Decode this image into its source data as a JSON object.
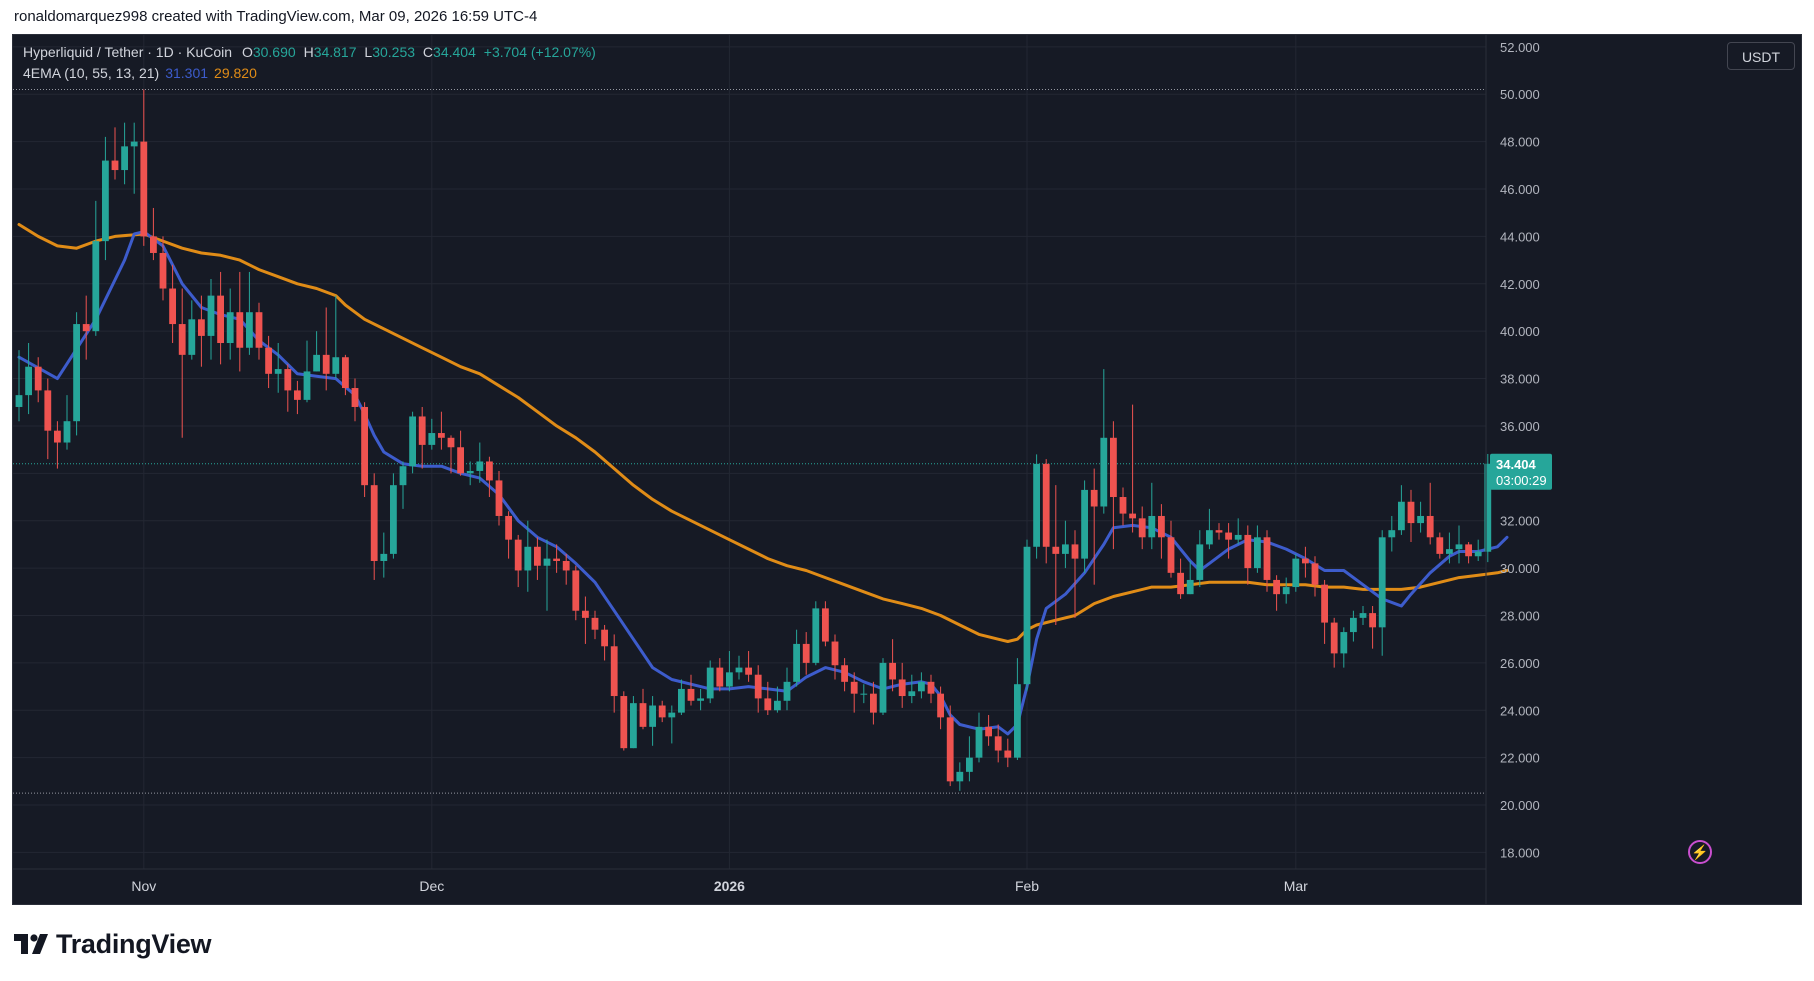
{
  "caption": "ronaldomarquez998 created with TradingView.com, Mar 09, 2026 16:59 UTC-4",
  "legend": {
    "symbol": "Hyperliquid / Tether · 1D · KuCoin",
    "o_label": "O",
    "o": "30.690",
    "h_label": "H",
    "h": "34.817",
    "l_label": "L",
    "l": "30.253",
    "c_label": "C",
    "c": "34.404",
    "change": "+3.704 (+12.07%)",
    "indicator": "4EMA (10, 55, 13, 21)",
    "ema_fast": "31.301",
    "ema_slow": "29.820"
  },
  "currency": "USDT",
  "price_label": {
    "price": "34.404",
    "countdown": "03:00:29"
  },
  "brand": "TradingView",
  "colors": {
    "up": "#26a69a",
    "down": "#ef5350",
    "ema_fast": "#3d5ccc",
    "ema_slow": "#e08c17",
    "background": "#161a25",
    "grid": "#232733",
    "text": "#b2b5be"
  },
  "chart_data": {
    "type": "candlestick",
    "y_ticks": [
      "18.000",
      "20.000",
      "22.000",
      "24.000",
      "26.000",
      "28.000",
      "30.000",
      "32.000",
      "34.000",
      "36.000",
      "38.000",
      "40.000",
      "42.000",
      "44.000",
      "46.000",
      "48.000",
      "50.000",
      "52.000"
    ],
    "x_ticks": [
      {
        "label": "Nov",
        "index": 13
      },
      {
        "label": "Dec",
        "index": 43
      },
      {
        "label": "2026",
        "index": 74
      },
      {
        "label": "Feb",
        "index": 105
      },
      {
        "label": "Mar",
        "index": 133
      }
    ],
    "ylim": [
      17.3,
      52.5
    ],
    "dotted_levels": [
      50.2,
      20.5
    ],
    "last_price": 34.404,
    "candles": [
      [
        36.8,
        37.3,
        39.2,
        36.2
      ],
      [
        37.3,
        38.5,
        39.5,
        36.5
      ],
      [
        38.5,
        37.5,
        38.9,
        37.0
      ],
      [
        37.5,
        35.8,
        38.0,
        34.6
      ],
      [
        35.8,
        35.3,
        36.2,
        34.2
      ],
      [
        35.3,
        36.2,
        37.3,
        35.0
      ],
      [
        36.2,
        40.3,
        40.8,
        35.6
      ],
      [
        40.3,
        40.0,
        41.5,
        38.8
      ],
      [
        40.0,
        43.8,
        45.5,
        39.8
      ],
      [
        43.8,
        47.2,
        48.2,
        43.0
      ],
      [
        47.2,
        46.8,
        48.6,
        46.4
      ],
      [
        46.8,
        47.8,
        48.8,
        46.2
      ],
      [
        47.8,
        48.0,
        48.8,
        45.8
      ],
      [
        48.0,
        44.0,
        50.2,
        43.6
      ],
      [
        44.0,
        43.3,
        45.2,
        43.0
      ],
      [
        43.3,
        41.8,
        44.0,
        41.3
      ],
      [
        41.8,
        40.3,
        42.8,
        39.5
      ],
      [
        40.3,
        39.0,
        41.8,
        35.5
      ],
      [
        39.0,
        40.5,
        41.3,
        38.8
      ],
      [
        40.5,
        39.8,
        41.5,
        38.5
      ],
      [
        39.8,
        41.5,
        42.2,
        38.8
      ],
      [
        41.5,
        39.5,
        42.5,
        38.6
      ],
      [
        39.5,
        40.8,
        41.8,
        38.8
      ],
      [
        40.8,
        39.3,
        42.5,
        38.3
      ],
      [
        39.3,
        40.8,
        42.5,
        39.0
      ],
      [
        40.8,
        39.3,
        41.2,
        38.8
      ],
      [
        39.3,
        38.2,
        39.8,
        37.6
      ],
      [
        38.2,
        38.4,
        39.5,
        37.4
      ],
      [
        38.4,
        37.5,
        38.6,
        36.6
      ],
      [
        37.5,
        37.1,
        37.9,
        36.5
      ],
      [
        37.1,
        38.3,
        39.6,
        37.0
      ],
      [
        38.3,
        39.0,
        40.0,
        38.3
      ],
      [
        39.0,
        38.2,
        41.0,
        37.5
      ],
      [
        38.2,
        38.9,
        41.5,
        38.0
      ],
      [
        38.9,
        37.6,
        39.0,
        37.3
      ],
      [
        37.6,
        36.8,
        38.0,
        36.2
      ],
      [
        36.8,
        33.5,
        37.0,
        33.0
      ],
      [
        33.5,
        30.3,
        34.0,
        29.5
      ],
      [
        30.3,
        30.6,
        31.5,
        29.6
      ],
      [
        30.6,
        33.5,
        34.0,
        30.4
      ],
      [
        33.5,
        34.3,
        34.5,
        32.5
      ],
      [
        34.3,
        36.4,
        36.6,
        34.0
      ],
      [
        36.4,
        35.2,
        36.8,
        34.2
      ],
      [
        35.2,
        35.7,
        36.3,
        35.0
      ],
      [
        35.7,
        35.5,
        36.6,
        35.0
      ],
      [
        35.5,
        35.1,
        35.6,
        34.0
      ],
      [
        35.1,
        34.0,
        35.8,
        33.9
      ],
      [
        34.0,
        34.1,
        34.5,
        33.5
      ],
      [
        34.1,
        34.5,
        35.3,
        33.6
      ],
      [
        34.5,
        33.7,
        34.7,
        33.0
      ],
      [
        33.7,
        32.2,
        34.1,
        31.8
      ],
      [
        32.2,
        31.2,
        32.4,
        30.4
      ],
      [
        31.2,
        29.9,
        31.4,
        29.2
      ],
      [
        29.9,
        30.9,
        32.0,
        29.0
      ],
      [
        30.9,
        30.1,
        31.3,
        29.5
      ],
      [
        30.1,
        30.4,
        31.2,
        28.2
      ],
      [
        30.4,
        30.3,
        31.0,
        29.8
      ],
      [
        30.3,
        29.9,
        30.6,
        29.3
      ],
      [
        29.9,
        28.2,
        30.1,
        27.8
      ],
      [
        28.2,
        27.9,
        28.8,
        26.8
      ],
      [
        27.9,
        27.4,
        28.2,
        27.0
      ],
      [
        27.4,
        26.7,
        27.6,
        26.1
      ],
      [
        26.7,
        24.6,
        27.2,
        23.9
      ],
      [
        24.6,
        22.4,
        24.8,
        22.3
      ],
      [
        22.4,
        24.3,
        24.6,
        22.4
      ],
      [
        24.3,
        23.3,
        24.9,
        23.2
      ],
      [
        23.3,
        24.2,
        24.6,
        22.5
      ],
      [
        24.2,
        23.7,
        24.4,
        23.5
      ],
      [
        23.7,
        23.9,
        24.2,
        22.6
      ],
      [
        23.9,
        24.9,
        25.3,
        23.8
      ],
      [
        24.9,
        24.4,
        25.5,
        24.2
      ],
      [
        24.4,
        24.5,
        24.9,
        24.0
      ],
      [
        24.5,
        25.8,
        26.1,
        24.3
      ],
      [
        25.8,
        25.0,
        26.2,
        24.8
      ],
      [
        25.0,
        25.6,
        26.5,
        24.8
      ],
      [
        25.6,
        25.8,
        26.3,
        25.3
      ],
      [
        25.8,
        25.5,
        26.5,
        25.2
      ],
      [
        25.5,
        24.5,
        25.9,
        23.9
      ],
      [
        24.5,
        24.0,
        25.2,
        23.8
      ],
      [
        24.0,
        24.4,
        25.0,
        23.9
      ],
      [
        24.4,
        25.2,
        25.8,
        24.0
      ],
      [
        25.2,
        26.8,
        27.4,
        25.0
      ],
      [
        26.8,
        26.0,
        27.3,
        25.5
      ],
      [
        26.0,
        28.3,
        28.6,
        25.9
      ],
      [
        28.3,
        26.9,
        28.6,
        26.7
      ],
      [
        26.9,
        25.9,
        27.2,
        25.3
      ],
      [
        25.9,
        25.2,
        26.2,
        24.8
      ],
      [
        25.2,
        24.7,
        25.6,
        23.9
      ],
      [
        24.7,
        24.7,
        25.1,
        24.3
      ],
      [
        24.7,
        23.9,
        25.2,
        23.4
      ],
      [
        23.9,
        26.0,
        26.2,
        23.8
      ],
      [
        26.0,
        25.3,
        27.0,
        24.8
      ],
      [
        25.3,
        24.6,
        26.0,
        24.1
      ],
      [
        24.6,
        24.8,
        25.5,
        24.3
      ],
      [
        24.8,
        25.2,
        25.6,
        24.5
      ],
      [
        25.2,
        24.7,
        25.5,
        24.3
      ],
      [
        24.7,
        23.7,
        25.0,
        23.2
      ],
      [
        23.7,
        21.0,
        24.2,
        20.8
      ],
      [
        21.0,
        21.4,
        21.8,
        20.6
      ],
      [
        21.4,
        22.0,
        22.9,
        21.0
      ],
      [
        22.0,
        23.3,
        23.9,
        21.8
      ],
      [
        23.3,
        22.9,
        23.8,
        22.5
      ],
      [
        22.9,
        22.3,
        23.4,
        21.8
      ],
      [
        22.3,
        22.0,
        22.8,
        21.6
      ],
      [
        22.0,
        25.1,
        26.2,
        21.9
      ],
      [
        25.1,
        30.9,
        31.2,
        24.8
      ],
      [
        30.9,
        34.4,
        34.8,
        30.4
      ],
      [
        34.4,
        30.9,
        34.6,
        30.2
      ],
      [
        30.9,
        30.6,
        33.5,
        27.6
      ],
      [
        30.6,
        31.0,
        32.0,
        30.0
      ],
      [
        31.0,
        30.4,
        31.6,
        27.9
      ],
      [
        30.4,
        33.3,
        33.7,
        29.8
      ],
      [
        33.3,
        32.6,
        34.2,
        29.3
      ],
      [
        32.6,
        35.5,
        38.4,
        32.3
      ],
      [
        35.5,
        33.0,
        36.2,
        30.8
      ],
      [
        33.0,
        32.3,
        33.4,
        31.8
      ],
      [
        32.3,
        32.1,
        36.9,
        31.5
      ],
      [
        32.1,
        31.3,
        32.6,
        30.8
      ],
      [
        31.3,
        32.2,
        33.6,
        30.8
      ],
      [
        32.2,
        31.3,
        32.7,
        30.4
      ],
      [
        31.3,
        29.8,
        32.0,
        29.6
      ],
      [
        29.8,
        28.9,
        30.4,
        28.7
      ],
      [
        28.9,
        29.5,
        30.3,
        28.9
      ],
      [
        29.5,
        31.0,
        31.6,
        29.2
      ],
      [
        31.0,
        31.6,
        32.5,
        30.8
      ],
      [
        31.6,
        31.5,
        31.9,
        31.2
      ],
      [
        31.5,
        31.2,
        31.9,
        30.4
      ],
      [
        31.2,
        31.4,
        32.1,
        31.0
      ],
      [
        31.4,
        30.0,
        31.8,
        29.3
      ],
      [
        30.0,
        31.3,
        31.8,
        29.8
      ],
      [
        31.3,
        29.5,
        31.6,
        29.0
      ],
      [
        29.5,
        28.9,
        29.7,
        28.2
      ],
      [
        28.9,
        29.2,
        29.6,
        28.5
      ],
      [
        29.2,
        30.4,
        30.6,
        29.0
      ],
      [
        30.4,
        30.2,
        30.9,
        29.6
      ],
      [
        30.2,
        29.3,
        30.5,
        28.8
      ],
      [
        29.3,
        27.7,
        29.5,
        26.8
      ],
      [
        27.7,
        26.4,
        27.9,
        25.8
      ],
      [
        26.4,
        27.3,
        27.5,
        25.8
      ],
      [
        27.3,
        27.9,
        28.2,
        26.9
      ],
      [
        27.9,
        28.1,
        28.4,
        27.6
      ],
      [
        28.1,
        27.5,
        28.4,
        26.6
      ],
      [
        27.5,
        31.3,
        31.6,
        26.3
      ],
      [
        31.3,
        31.6,
        32.2,
        30.7
      ],
      [
        31.6,
        32.8,
        33.5,
        31.4
      ],
      [
        32.8,
        31.9,
        33.3,
        31.1
      ],
      [
        31.9,
        32.2,
        32.8,
        31.5
      ],
      [
        32.2,
        31.3,
        33.6,
        31.0
      ],
      [
        31.3,
        30.6,
        31.5,
        30.4
      ],
      [
        30.6,
        30.8,
        31.5,
        30.2
      ],
      [
        30.8,
        31.0,
        31.8,
        30.2
      ],
      [
        31.0,
        30.5,
        31.1,
        30.2
      ],
      [
        30.5,
        30.7,
        31.2,
        30.3
      ],
      [
        30.69,
        34.404,
        34.817,
        30.253
      ]
    ],
    "ema_fast": [
      [
        0,
        38.9
      ],
      [
        4,
        38.0
      ],
      [
        8,
        40.5
      ],
      [
        11,
        43.0
      ],
      [
        12,
        44.1
      ],
      [
        13,
        44.2
      ],
      [
        15,
        43.6
      ],
      [
        17,
        42.0
      ],
      [
        19,
        41.0
      ],
      [
        21,
        40.7
      ],
      [
        23,
        40.5
      ],
      [
        25,
        39.6
      ],
      [
        27,
        39.0
      ],
      [
        29,
        38.2
      ],
      [
        31,
        38.1
      ],
      [
        33,
        38.0
      ],
      [
        35,
        37.3
      ],
      [
        36,
        36.5
      ],
      [
        37,
        35.6
      ],
      [
        38,
        34.9
      ],
      [
        40,
        34.4
      ],
      [
        42,
        34.3
      ],
      [
        44,
        34.3
      ],
      [
        46,
        34.0
      ],
      [
        48,
        33.8
      ],
      [
        50,
        33.1
      ],
      [
        52,
        32.0
      ],
      [
        54,
        31.3
      ],
      [
        56,
        30.9
      ],
      [
        58,
        30.2
      ],
      [
        60,
        29.4
      ],
      [
        62,
        28.2
      ],
      [
        64,
        27.0
      ],
      [
        66,
        25.8
      ],
      [
        68,
        25.3
      ],
      [
        70,
        25.1
      ],
      [
        72,
        24.9
      ],
      [
        74,
        24.9
      ],
      [
        76,
        25.0
      ],
      [
        78,
        24.9
      ],
      [
        80,
        24.8
      ],
      [
        82,
        25.4
      ],
      [
        84,
        25.8
      ],
      [
        86,
        25.6
      ],
      [
        88,
        25.2
      ],
      [
        90,
        24.9
      ],
      [
        92,
        25.1
      ],
      [
        94,
        25.2
      ],
      [
        95,
        25.1
      ],
      [
        96,
        24.6
      ],
      [
        97,
        23.8
      ],
      [
        98,
        23.4
      ],
      [
        100,
        23.2
      ],
      [
        102,
        23.3
      ],
      [
        103,
        23.0
      ],
      [
        104,
        23.4
      ],
      [
        105,
        25.0
      ],
      [
        106,
        27.0
      ],
      [
        107,
        28.3
      ],
      [
        109,
        28.9
      ],
      [
        111,
        29.8
      ],
      [
        113,
        31.0
      ],
      [
        114,
        31.7
      ],
      [
        116,
        31.8
      ],
      [
        118,
        31.7
      ],
      [
        120,
        31.3
      ],
      [
        122,
        30.3
      ],
      [
        123,
        29.9
      ],
      [
        124,
        30.2
      ],
      [
        126,
        30.8
      ],
      [
        128,
        31.2
      ],
      [
        130,
        31.1
      ],
      [
        132,
        30.8
      ],
      [
        134,
        30.4
      ],
      [
        136,
        29.9
      ],
      [
        138,
        29.9
      ],
      [
        140,
        29.3
      ],
      [
        142,
        28.7
      ],
      [
        144,
        28.4
      ],
      [
        145,
        28.9
      ],
      [
        147,
        29.8
      ],
      [
        149,
        30.5
      ],
      [
        150,
        30.7
      ],
      [
        152,
        30.7
      ],
      [
        154,
        30.9
      ],
      [
        155,
        31.3
      ]
    ],
    "ema_slow": [
      [
        0,
        44.5
      ],
      [
        2,
        44.0
      ],
      [
        4,
        43.6
      ],
      [
        6,
        43.5
      ],
      [
        8,
        43.8
      ],
      [
        10,
        44.0
      ],
      [
        13,
        44.1
      ],
      [
        15,
        43.8
      ],
      [
        17,
        43.5
      ],
      [
        19,
        43.3
      ],
      [
        21,
        43.2
      ],
      [
        23,
        43.0
      ],
      [
        25,
        42.6
      ],
      [
        27,
        42.3
      ],
      [
        29,
        42.0
      ],
      [
        31,
        41.8
      ],
      [
        33,
        41.5
      ],
      [
        34,
        41.1
      ],
      [
        35,
        40.8
      ],
      [
        36,
        40.5
      ],
      [
        38,
        40.1
      ],
      [
        40,
        39.7
      ],
      [
        42,
        39.3
      ],
      [
        44,
        38.9
      ],
      [
        46,
        38.5
      ],
      [
        48,
        38.2
      ],
      [
        50,
        37.7
      ],
      [
        52,
        37.2
      ],
      [
        54,
        36.6
      ],
      [
        56,
        36.0
      ],
      [
        58,
        35.5
      ],
      [
        60,
        34.9
      ],
      [
        62,
        34.2
      ],
      [
        64,
        33.5
      ],
      [
        66,
        32.9
      ],
      [
        68,
        32.4
      ],
      [
        70,
        32.0
      ],
      [
        72,
        31.6
      ],
      [
        74,
        31.2
      ],
      [
        76,
        30.8
      ],
      [
        78,
        30.4
      ],
      [
        80,
        30.1
      ],
      [
        82,
        29.9
      ],
      [
        84,
        29.6
      ],
      [
        86,
        29.3
      ],
      [
        88,
        29.0
      ],
      [
        90,
        28.7
      ],
      [
        92,
        28.5
      ],
      [
        94,
        28.3
      ],
      [
        96,
        28.0
      ],
      [
        98,
        27.6
      ],
      [
        100,
        27.2
      ],
      [
        102,
        27.0
      ],
      [
        103,
        26.9
      ],
      [
        104,
        27.0
      ],
      [
        105,
        27.4
      ],
      [
        106,
        27.6
      ],
      [
        108,
        27.8
      ],
      [
        110,
        28.0
      ],
      [
        112,
        28.5
      ],
      [
        114,
        28.8
      ],
      [
        116,
        29.0
      ],
      [
        118,
        29.2
      ],
      [
        120,
        29.2
      ],
      [
        122,
        29.3
      ],
      [
        124,
        29.4
      ],
      [
        126,
        29.4
      ],
      [
        128,
        29.4
      ],
      [
        130,
        29.3
      ],
      [
        132,
        29.3
      ],
      [
        134,
        29.3
      ],
      [
        136,
        29.2
      ],
      [
        138,
        29.2
      ],
      [
        140,
        29.1
      ],
      [
        142,
        29.1
      ],
      [
        144,
        29.1
      ],
      [
        146,
        29.2
      ],
      [
        148,
        29.4
      ],
      [
        150,
        29.6
      ],
      [
        152,
        29.7
      ],
      [
        154,
        29.8
      ],
      [
        155,
        29.9
      ]
    ]
  }
}
